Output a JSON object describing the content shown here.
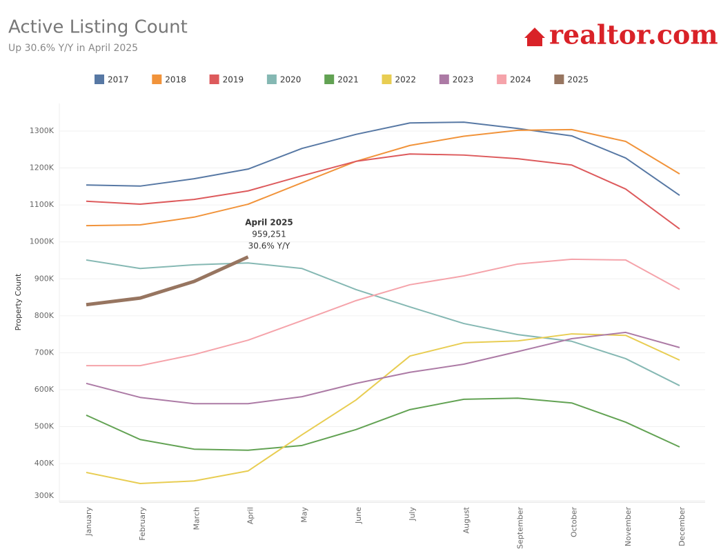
{
  "chart_data": {
    "type": "line",
    "title": "Active Listing Count",
    "subtitle": "Up 30.6% Y/Y in April 2025",
    "logo": "realtor.com",
    "y_label": "Property Count",
    "annotation": [
      "April 2025",
      "959,251",
      "30.6% Y/Y"
    ],
    "categories": [
      "January",
      "February",
      "March",
      "April",
      "May",
      "June",
      "July",
      "August",
      "September",
      "October",
      "November",
      "December"
    ],
    "ylim": [
      290000,
      1370000
    ],
    "yticks": [
      {
        "value": 300000,
        "label": "300K"
      },
      {
        "value": 400000,
        "label": "400K"
      },
      {
        "value": 500000,
        "label": "500K"
      },
      {
        "value": 600000,
        "label": "600K"
      },
      {
        "value": 700000,
        "label": "700K"
      },
      {
        "value": 800000,
        "label": "800K"
      },
      {
        "value": 900000,
        "label": "900K"
      },
      {
        "value": 1000000,
        "label": "1000K"
      },
      {
        "value": 1100000,
        "label": "1100K"
      },
      {
        "value": 1200000,
        "label": "1200K"
      },
      {
        "value": 1300000,
        "label": "1300K"
      }
    ],
    "grid": true,
    "legend": "top",
    "series": [
      {
        "name": "2017",
        "color": "#5778a4",
        "values": [
          1154000,
          1151000,
          1171000,
          1197000,
          1253000,
          1291000,
          1322000,
          1324000,
          1307000,
          1287000,
          1227000,
          1126000
        ]
      },
      {
        "name": "2018",
        "color": "#f1933a",
        "values": [
          1044000,
          1046000,
          1067000,
          1102000,
          1160000,
          1218000,
          1261000,
          1286000,
          1302000,
          1304000,
          1272000,
          1184000
        ]
      },
      {
        "name": "2019",
        "color": "#dd5a5c",
        "values": [
          1110000,
          1102000,
          1115000,
          1138000,
          1179000,
          1218000,
          1238000,
          1235000,
          1225000,
          1208000,
          1143000,
          1035000
        ]
      },
      {
        "name": "2020",
        "color": "#85b8b3",
        "values": [
          951000,
          928000,
          938000,
          943000,
          928000,
          871000,
          824000,
          779000,
          749000,
          731000,
          684000,
          611000
        ]
      },
      {
        "name": "2021",
        "color": "#62a253",
        "values": [
          531000,
          465000,
          439000,
          436000,
          449000,
          492000,
          546000,
          574000,
          577000,
          564000,
          512000,
          445000
        ]
      },
      {
        "name": "2022",
        "color": "#e8cd52",
        "values": [
          376000,
          346000,
          353000,
          380000,
          478000,
          572000,
          691000,
          727000,
          732000,
          751000,
          747000,
          680000
        ]
      },
      {
        "name": "2023",
        "color": "#ac7aa5",
        "values": [
          617000,
          579000,
          562000,
          562000,
          581000,
          617000,
          647000,
          669000,
          703000,
          738000,
          755000,
          714000
        ]
      },
      {
        "name": "2024",
        "color": "#f5a3aa",
        "values": [
          665000,
          665000,
          695000,
          734000,
          787000,
          841000,
          884000,
          908000,
          940000,
          953000,
          951000,
          871000
        ]
      },
      {
        "name": "2025",
        "color": "#977560",
        "values": [
          830000,
          848000,
          893000,
          959251,
          null,
          null,
          null,
          null,
          null,
          null,
          null,
          null
        ]
      }
    ]
  }
}
